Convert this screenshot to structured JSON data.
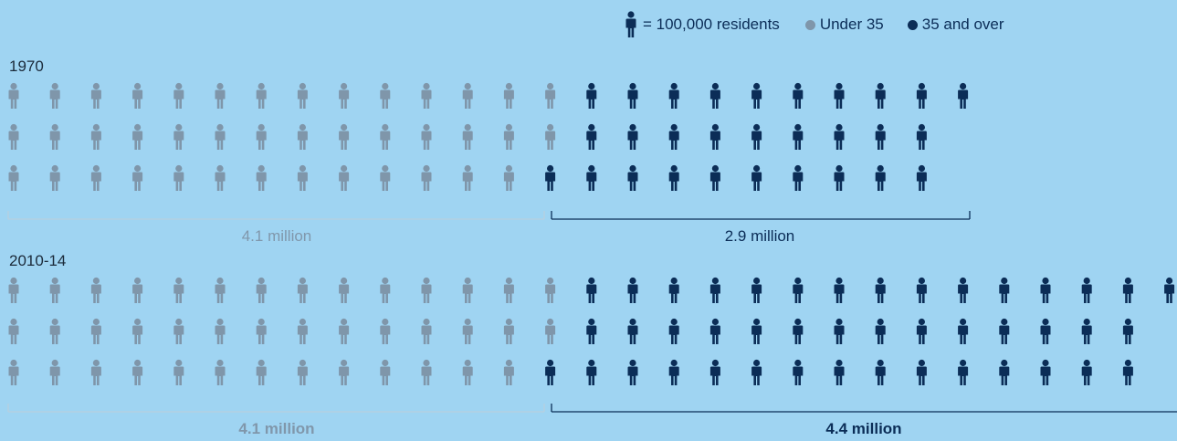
{
  "legend": {
    "unit_label": "= 100,000 residents",
    "icon": "person-icon"
  },
  "colors": {
    "background": "#9fd4f2",
    "under_35": "#7f96aa",
    "over_35": "#0b2d57"
  },
  "chart_data": {
    "type": "pictogram",
    "unit_value": 100000,
    "unit_label": "= 100,000 residents",
    "series": [
      {
        "name": "Under 35",
        "color": "#7f96aa"
      },
      {
        "name": "35 and over",
        "color": "#0b2d57"
      }
    ],
    "groups": [
      {
        "label": "1970",
        "under_35_icons": 41,
        "over_35_icons": 29,
        "under_35_label": "4.1 million",
        "over_35_label": "2.9 million",
        "labels_bold": false
      },
      {
        "label": "2010-14",
        "under_35_icons": 41,
        "over_35_icons": 44,
        "under_35_label": "4.1 million",
        "over_35_label": "4.4 million",
        "labels_bold": true
      }
    ]
  }
}
